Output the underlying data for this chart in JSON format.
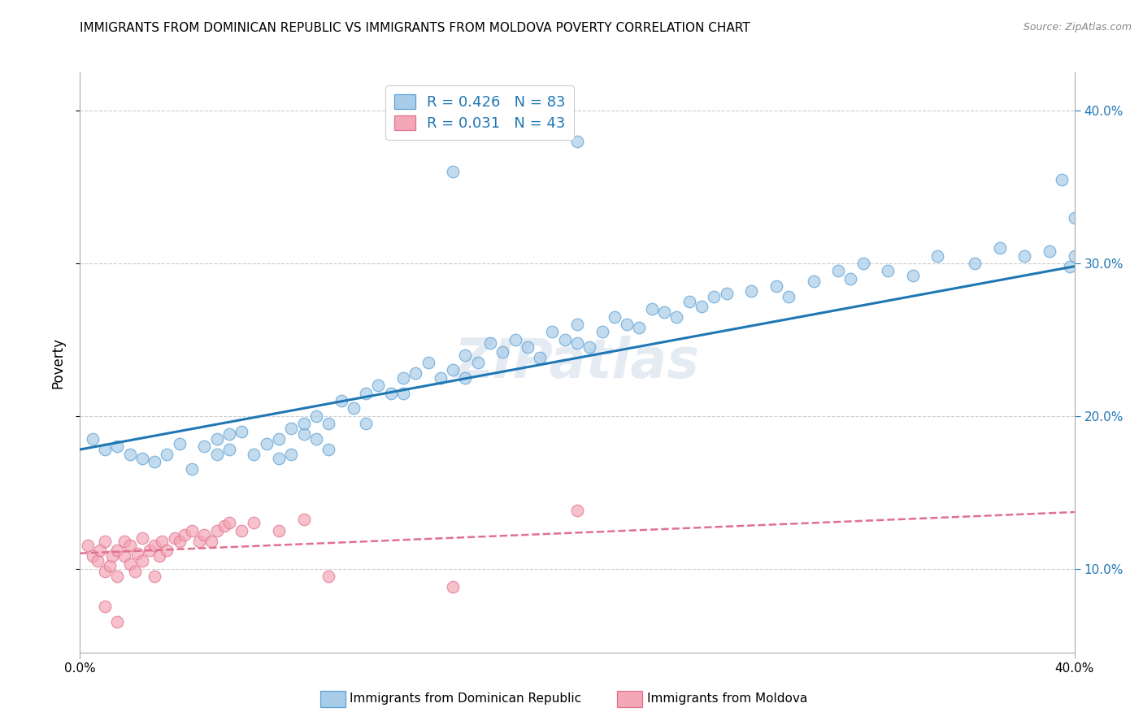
{
  "title": "IMMIGRANTS FROM DOMINICAN REPUBLIC VS IMMIGRANTS FROM MOLDOVA POVERTY CORRELATION CHART",
  "source": "Source: ZipAtlas.com",
  "ylabel": "Poverty",
  "ytick_labels": [
    "10.0%",
    "20.0%",
    "30.0%",
    "40.0%"
  ],
  "ytick_values": [
    0.1,
    0.2,
    0.3,
    0.4
  ],
  "xlim": [
    0.0,
    0.4
  ],
  "ylim": [
    0.045,
    0.425
  ],
  "label_blue": "Immigrants from Dominican Republic",
  "label_pink": "Immigrants from Moldova",
  "blue_color": "#a8cde8",
  "pink_color": "#f4a7b5",
  "blue_edge_color": "#5a9fd4",
  "pink_edge_color": "#e07090",
  "blue_line_color": "#1f77b4",
  "pink_line_color": "#e07090",
  "watermark": "ZIPatlas",
  "blue_R": "0.426",
  "blue_N": "83",
  "pink_R": "0.031",
  "pink_N": "43",
  "blue_scatter_x": [
    0.005,
    0.01,
    0.015,
    0.02,
    0.025,
    0.03,
    0.035,
    0.04,
    0.045,
    0.05,
    0.055,
    0.055,
    0.06,
    0.06,
    0.065,
    0.07,
    0.075,
    0.08,
    0.08,
    0.085,
    0.085,
    0.09,
    0.09,
    0.095,
    0.095,
    0.1,
    0.1,
    0.105,
    0.11,
    0.115,
    0.115,
    0.12,
    0.125,
    0.13,
    0.13,
    0.135,
    0.14,
    0.145,
    0.15,
    0.155,
    0.155,
    0.16,
    0.165,
    0.17,
    0.175,
    0.18,
    0.185,
    0.19,
    0.195,
    0.2,
    0.2,
    0.205,
    0.21,
    0.215,
    0.22,
    0.225,
    0.23,
    0.235,
    0.24,
    0.245,
    0.25,
    0.255,
    0.26,
    0.27,
    0.28,
    0.285,
    0.295,
    0.305,
    0.31,
    0.315,
    0.325,
    0.335,
    0.345,
    0.36,
    0.37,
    0.38,
    0.39,
    0.395,
    0.398,
    0.4,
    0.4,
    0.15,
    0.2
  ],
  "blue_scatter_y": [
    0.185,
    0.178,
    0.18,
    0.175,
    0.172,
    0.17,
    0.175,
    0.182,
    0.165,
    0.18,
    0.185,
    0.175,
    0.188,
    0.178,
    0.19,
    0.175,
    0.182,
    0.172,
    0.185,
    0.192,
    0.175,
    0.188,
    0.195,
    0.185,
    0.2,
    0.178,
    0.195,
    0.21,
    0.205,
    0.215,
    0.195,
    0.22,
    0.215,
    0.215,
    0.225,
    0.228,
    0.235,
    0.225,
    0.23,
    0.24,
    0.225,
    0.235,
    0.248,
    0.242,
    0.25,
    0.245,
    0.238,
    0.255,
    0.25,
    0.248,
    0.26,
    0.245,
    0.255,
    0.265,
    0.26,
    0.258,
    0.27,
    0.268,
    0.265,
    0.275,
    0.272,
    0.278,
    0.28,
    0.282,
    0.285,
    0.278,
    0.288,
    0.295,
    0.29,
    0.3,
    0.295,
    0.292,
    0.305,
    0.3,
    0.31,
    0.305,
    0.308,
    0.355,
    0.298,
    0.305,
    0.33,
    0.36,
    0.38
  ],
  "pink_scatter_x": [
    0.003,
    0.005,
    0.007,
    0.008,
    0.01,
    0.01,
    0.012,
    0.013,
    0.015,
    0.015,
    0.018,
    0.018,
    0.02,
    0.02,
    0.022,
    0.023,
    0.025,
    0.025,
    0.028,
    0.03,
    0.03,
    0.032,
    0.033,
    0.035,
    0.038,
    0.04,
    0.042,
    0.045,
    0.048,
    0.05,
    0.053,
    0.055,
    0.058,
    0.06,
    0.065,
    0.07,
    0.08,
    0.09,
    0.1,
    0.15,
    0.2,
    0.01,
    0.015
  ],
  "pink_scatter_y": [
    0.115,
    0.108,
    0.105,
    0.112,
    0.098,
    0.118,
    0.102,
    0.108,
    0.095,
    0.112,
    0.108,
    0.118,
    0.103,
    0.115,
    0.098,
    0.11,
    0.105,
    0.12,
    0.112,
    0.095,
    0.115,
    0.108,
    0.118,
    0.112,
    0.12,
    0.118,
    0.122,
    0.125,
    0.118,
    0.122,
    0.118,
    0.125,
    0.128,
    0.13,
    0.125,
    0.13,
    0.125,
    0.132,
    0.095,
    0.088,
    0.138,
    0.075,
    0.065
  ],
  "blue_line_y_start": 0.178,
  "blue_line_y_end": 0.298,
  "pink_line_y_start": 0.11,
  "pink_line_y_end": 0.137
}
